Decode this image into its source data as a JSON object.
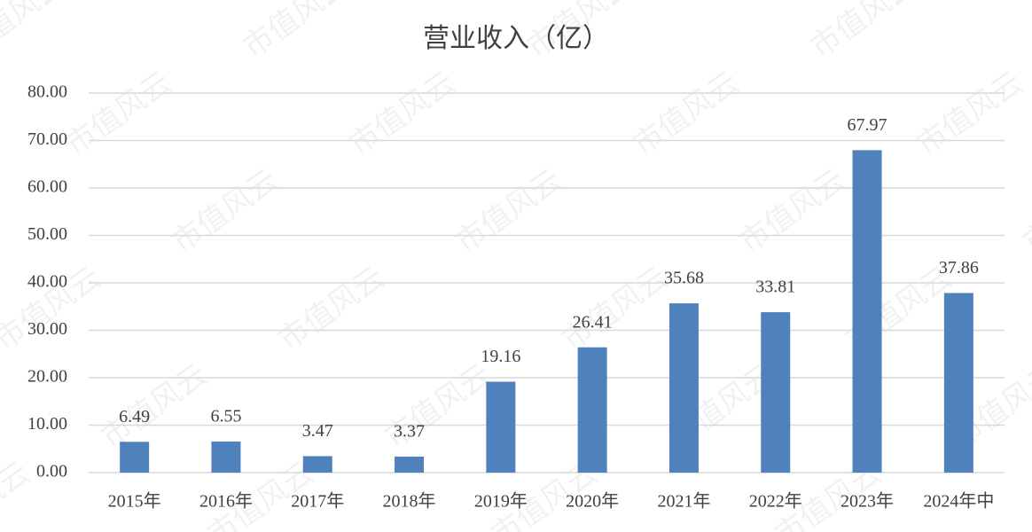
{
  "chart_data": {
    "type": "bar",
    "title": "营业收入（亿）",
    "watermark": "市值风云",
    "categories": [
      "2015年",
      "2016年",
      "2017年",
      "2018年",
      "2019年",
      "2020年",
      "2021年",
      "2022年",
      "2023年",
      "2024年中"
    ],
    "values": [
      6.49,
      6.55,
      3.47,
      3.37,
      19.16,
      26.41,
      35.68,
      33.81,
      67.97,
      37.86
    ],
    "color": "#4f81bd",
    "ylim": [
      0,
      80
    ],
    "yticks": [
      {
        "value": 0,
        "label": "0.00"
      },
      {
        "value": 10,
        "label": "10.00"
      },
      {
        "value": 20,
        "label": "20.00"
      },
      {
        "value": 30,
        "label": "30.00"
      },
      {
        "value": 40,
        "label": "40.00"
      },
      {
        "value": 50,
        "label": "50.00"
      },
      {
        "value": 60,
        "label": "60.00"
      },
      {
        "value": 70,
        "label": "70.00"
      },
      {
        "value": 80,
        "label": "80.00"
      }
    ],
    "grid": true
  }
}
